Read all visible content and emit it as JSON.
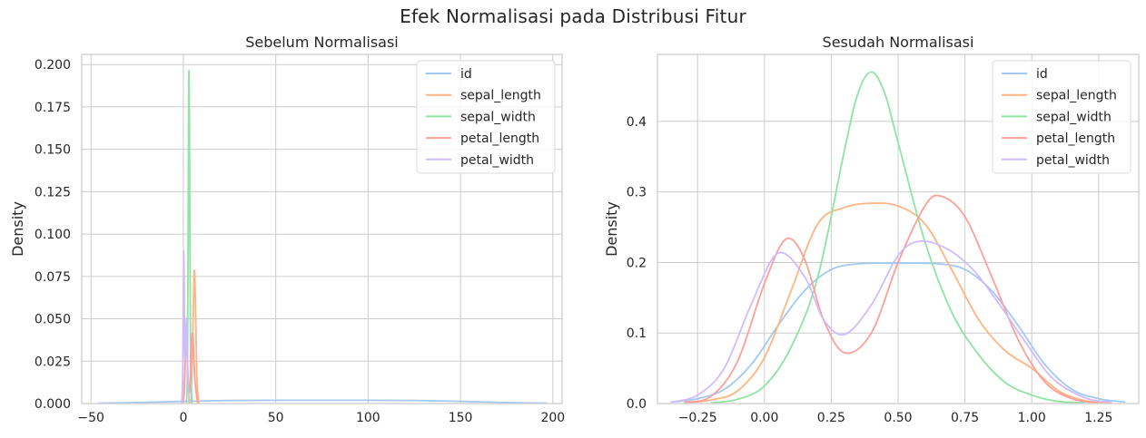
{
  "figure": {
    "title": "Efek Normalisasi pada Distribusi Fitur"
  },
  "colors": {
    "id": "#a1c9f4",
    "sepal_length": "#ffb482",
    "sepal_width": "#8de5a1",
    "petal_length": "#ff9f9b",
    "petal_width": "#d0bbff"
  },
  "chart_data": [
    {
      "type": "line",
      "subtype": "kde",
      "title": "Sebelum Normalisasi",
      "xlabel": "",
      "ylabel": "Density",
      "xlim": [
        -55,
        205
      ],
      "ylim": [
        0,
        0.206
      ],
      "xticks": [
        -50,
        0,
        50,
        100,
        150,
        200
      ],
      "xtick_labels": [
        "−50",
        "0",
        "50",
        "100",
        "150",
        "200"
      ],
      "yticks": [
        0,
        0.025,
        0.05,
        0.075,
        0.1,
        0.125,
        0.15,
        0.175,
        0.2
      ],
      "ytick_labels": [
        "0.000",
        "0.025",
        "0.050",
        "0.075",
        "0.100",
        "0.125",
        "0.150",
        "0.175",
        "0.200"
      ],
      "grid": true,
      "legend": "top-right",
      "series": [
        {
          "name": "id",
          "color": "#a1c9f4",
          "x": [
            -46,
            -25,
            0,
            25,
            50,
            75,
            100,
            125,
            150,
            175,
            197
          ],
          "y": [
            0.0002,
            0.0006,
            0.0013,
            0.0018,
            0.0019,
            0.0019,
            0.0019,
            0.0018,
            0.0013,
            0.0006,
            0.0002
          ]
        },
        {
          "name": "sepal_length",
          "color": "#ffb482",
          "x": [
            3.5,
            4.2,
            4.9,
            5.5,
            5.9,
            6.3,
            6.8,
            7.4,
            8.4
          ],
          "y": [
            0,
            0.004,
            0.03,
            0.06,
            0.078,
            0.072,
            0.046,
            0.013,
            0
          ]
        },
        {
          "name": "sepal_width",
          "color": "#8de5a1",
          "x": [
            1.7,
            2.2,
            2.6,
            2.9,
            3.1,
            3.3,
            3.6,
            4.0,
            4.7
          ],
          "y": [
            0,
            0.02,
            0.1,
            0.18,
            0.196,
            0.17,
            0.09,
            0.025,
            0
          ]
        },
        {
          "name": "petal_length",
          "color": "#ff9f9b",
          "x": [
            -0.5,
            0.6,
            1.5,
            2.6,
            3.5,
            4.4,
            5.2,
            6.2,
            7.7
          ],
          "y": [
            0,
            0.008,
            0.04,
            0.012,
            0.008,
            0.035,
            0.04,
            0.015,
            0
          ]
        },
        {
          "name": "petal_width",
          "color": "#d0bbff",
          "x": [
            -0.9,
            -0.3,
            0.2,
            0.8,
            1.3,
            1.8,
            2.4,
            3.2
          ],
          "y": [
            0,
            0.02,
            0.09,
            0.03,
            0.035,
            0.05,
            0.02,
            0
          ]
        }
      ]
    },
    {
      "type": "line",
      "subtype": "kde",
      "title": "Sesudah Normalisasi",
      "xlabel": "",
      "ylabel": "Density",
      "xlim": [
        -0.4,
        1.4
      ],
      "ylim": [
        0,
        0.495
      ],
      "xticks": [
        -0.25,
        0,
        0.25,
        0.5,
        0.75,
        1.0,
        1.25
      ],
      "xtick_labels": [
        "−0.25",
        "0.00",
        "0.25",
        "0.50",
        "0.75",
        "1.00",
        "1.25"
      ],
      "yticks": [
        0,
        0.1,
        0.2,
        0.3,
        0.4
      ],
      "ytick_labels": [
        "0.0",
        "0.1",
        "0.2",
        "0.3",
        "0.4"
      ],
      "grid": true,
      "legend": "top-right",
      "series": [
        {
          "name": "id",
          "color": "#a1c9f4",
          "x": [
            -0.35,
            -0.25,
            -0.15,
            -0.05,
            0.05,
            0.15,
            0.25,
            0.35,
            0.5,
            0.65,
            0.75,
            0.85,
            0.95,
            1.05,
            1.15,
            1.25,
            1.35
          ],
          "y": [
            0.002,
            0.007,
            0.02,
            0.055,
            0.11,
            0.16,
            0.19,
            0.198,
            0.199,
            0.198,
            0.19,
            0.16,
            0.11,
            0.055,
            0.02,
            0.007,
            0.002
          ]
        },
        {
          "name": "sepal_length",
          "color": "#ffb482",
          "x": [
            -0.3,
            -0.2,
            -0.1,
            0.0,
            0.1,
            0.2,
            0.3,
            0.4,
            0.5,
            0.6,
            0.7,
            0.8,
            0.9,
            1.0,
            1.1,
            1.2,
            1.3
          ],
          "y": [
            0.001,
            0.005,
            0.018,
            0.065,
            0.16,
            0.255,
            0.278,
            0.284,
            0.28,
            0.255,
            0.19,
            0.12,
            0.075,
            0.05,
            0.018,
            0.004,
            0.001
          ]
        },
        {
          "name": "sepal_width",
          "color": "#8de5a1",
          "x": [
            -0.2,
            -0.1,
            0.0,
            0.1,
            0.2,
            0.3,
            0.35,
            0.4,
            0.45,
            0.5,
            0.6,
            0.7,
            0.8,
            0.9,
            1.0,
            1.1,
            1.2
          ],
          "y": [
            0.001,
            0.006,
            0.025,
            0.08,
            0.18,
            0.36,
            0.44,
            0.47,
            0.44,
            0.37,
            0.23,
            0.13,
            0.07,
            0.03,
            0.012,
            0.003,
            0.001
          ]
        },
        {
          "name": "petal_length",
          "color": "#ff9f9b",
          "x": [
            -0.3,
            -0.2,
            -0.1,
            0.0,
            0.08,
            0.15,
            0.22,
            0.3,
            0.4,
            0.5,
            0.6,
            0.66,
            0.75,
            0.85,
            0.95,
            1.05,
            1.15,
            1.25
          ],
          "y": [
            0.002,
            0.01,
            0.06,
            0.17,
            0.233,
            0.205,
            0.12,
            0.072,
            0.1,
            0.2,
            0.28,
            0.294,
            0.265,
            0.18,
            0.09,
            0.03,
            0.007,
            0.001
          ]
        },
        {
          "name": "petal_width",
          "color": "#d0bbff",
          "x": [
            -0.35,
            -0.25,
            -0.15,
            -0.05,
            0.05,
            0.15,
            0.22,
            0.3,
            0.4,
            0.5,
            0.58,
            0.68,
            0.78,
            0.88,
            0.98,
            1.08,
            1.2,
            1.3
          ],
          "y": [
            0.002,
            0.012,
            0.05,
            0.14,
            0.213,
            0.18,
            0.12,
            0.098,
            0.14,
            0.21,
            0.23,
            0.22,
            0.19,
            0.14,
            0.085,
            0.035,
            0.008,
            0.002
          ]
        }
      ]
    }
  ]
}
